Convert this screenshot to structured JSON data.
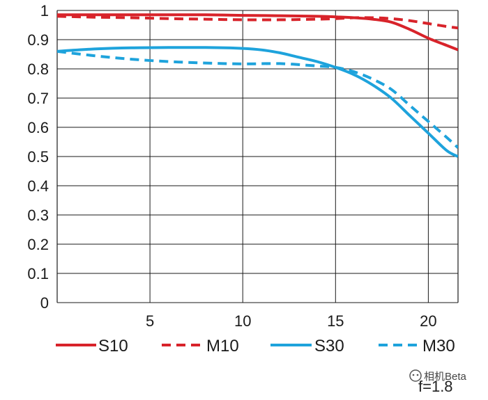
{
  "chart_data": {
    "type": "line",
    "title": "",
    "xlabel": "",
    "ylabel": "",
    "xlim": [
      0,
      21.6
    ],
    "ylim": [
      0,
      1
    ],
    "x_ticks": [
      "5",
      "10",
      "15",
      "20"
    ],
    "x_tick_values": [
      5,
      10,
      15,
      20
    ],
    "y_ticks": [
      "0",
      "0.1",
      "0.2",
      "0.3",
      "0.4",
      "0.5",
      "0.6",
      "0.7",
      "0.8",
      "0.9",
      "1"
    ],
    "y_tick_values": [
      0,
      0.1,
      0.2,
      0.3,
      0.4,
      0.5,
      0.6,
      0.7,
      0.8,
      0.9,
      1
    ],
    "grid": true,
    "legend_position": "bottom",
    "series": [
      {
        "name": "S10",
        "color": "#d8232a",
        "dash": "solid",
        "x": [
          0,
          2,
          4,
          6,
          8,
          10,
          12,
          14,
          15,
          16,
          17,
          18,
          19,
          20,
          21,
          21.6
        ],
        "y": [
          0.985,
          0.985,
          0.985,
          0.985,
          0.985,
          0.983,
          0.982,
          0.98,
          0.978,
          0.975,
          0.97,
          0.96,
          0.935,
          0.905,
          0.88,
          0.865
        ]
      },
      {
        "name": "M10",
        "color": "#d8232a",
        "dash": "dashed",
        "x": [
          0,
          2,
          4,
          6,
          8,
          10,
          12,
          14,
          15,
          16,
          17,
          18,
          19,
          20,
          21,
          21.6
        ],
        "y": [
          0.98,
          0.977,
          0.975,
          0.972,
          0.97,
          0.968,
          0.968,
          0.97,
          0.972,
          0.975,
          0.975,
          0.972,
          0.965,
          0.955,
          0.945,
          0.94
        ]
      },
      {
        "name": "S30",
        "color": "#1ea3dc",
        "dash": "solid",
        "x": [
          0,
          2,
          4,
          6,
          8,
          10,
          11,
          12,
          13,
          14,
          15,
          16,
          17,
          18,
          19,
          20,
          21,
          21.6
        ],
        "y": [
          0.86,
          0.868,
          0.872,
          0.873,
          0.873,
          0.87,
          0.865,
          0.855,
          0.84,
          0.825,
          0.805,
          0.78,
          0.745,
          0.7,
          0.64,
          0.58,
          0.52,
          0.5
        ]
      },
      {
        "name": "M30",
        "color": "#1ea3dc",
        "dash": "dashed",
        "x": [
          0,
          2,
          4,
          6,
          8,
          10,
          12,
          14,
          15,
          16,
          17,
          18,
          19,
          20,
          21,
          21.6
        ],
        "y": [
          0.86,
          0.845,
          0.833,
          0.825,
          0.82,
          0.817,
          0.818,
          0.81,
          0.805,
          0.79,
          0.765,
          0.73,
          0.675,
          0.62,
          0.565,
          0.53
        ]
      }
    ]
  },
  "watermark": "相机Beta",
  "aperture_label": "f=1.8"
}
